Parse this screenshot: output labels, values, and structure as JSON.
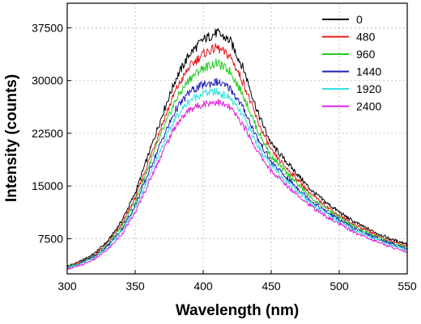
{
  "chart_data": {
    "type": "line",
    "title": "",
    "xlabel": "Wavelength (nm)",
    "ylabel": "Intensity (counts)",
    "xlim": [
      300,
      550
    ],
    "ylim": [
      2500,
      41000
    ],
    "xticks": [
      300,
      350,
      400,
      450,
      500,
      550
    ],
    "yticks": [
      7500,
      15000,
      22500,
      30000,
      37500
    ],
    "grid": true,
    "legend_position": "top-right",
    "x": [
      300,
      310,
      320,
      330,
      340,
      350,
      360,
      370,
      380,
      390,
      400,
      410,
      420,
      430,
      440,
      450,
      460,
      470,
      480,
      490,
      500,
      510,
      520,
      530,
      540,
      550
    ],
    "series": [
      {
        "name": "0",
        "color": "#000000",
        "values": [
          3600,
          4300,
          5400,
          7200,
          10000,
          14000,
          19600,
          25200,
          30300,
          33800,
          35800,
          36800,
          35600,
          31500,
          25500,
          21000,
          18700,
          16500,
          14300,
          12700,
          11300,
          10000,
          9000,
          8100,
          7300,
          6800
        ]
      },
      {
        "name": "480",
        "color": "#e31a1c",
        "values": [
          3500,
          4200,
          5200,
          6900,
          9500,
          13300,
          18600,
          23900,
          28700,
          32000,
          33800,
          34700,
          33400,
          29500,
          24200,
          20000,
          17800,
          15800,
          13700,
          12200,
          10800,
          9600,
          8700,
          7800,
          7000,
          6500
        ]
      },
      {
        "name": "960",
        "color": "#22cc22",
        "values": [
          3500,
          4100,
          5100,
          6700,
          9200,
          12800,
          17800,
          22800,
          27300,
          30300,
          31800,
          32500,
          31300,
          27700,
          22900,
          19200,
          17100,
          15200,
          13200,
          11800,
          10500,
          9300,
          8400,
          7600,
          6800,
          6300
        ]
      },
      {
        "name": "1440",
        "color": "#1f1fb4",
        "values": [
          3400,
          4000,
          5000,
          6500,
          8800,
          12200,
          17000,
          21700,
          25900,
          28400,
          29400,
          29800,
          28900,
          25900,
          21700,
          18400,
          16400,
          14600,
          12800,
          11400,
          10200,
          9000,
          8200,
          7400,
          6700,
          6100
        ]
      },
      {
        "name": "1920",
        "color": "#33e0e0",
        "values": [
          3300,
          3900,
          4800,
          6300,
          8500,
          11800,
          16300,
          20800,
          24800,
          27200,
          28200,
          28400,
          27500,
          24700,
          20800,
          17800,
          15900,
          14200,
          12400,
          11100,
          9900,
          8800,
          8000,
          7200,
          6500,
          5900
        ]
      },
      {
        "name": "2400",
        "color": "#e020e0",
        "values": [
          3200,
          3700,
          4600,
          6000,
          8100,
          11200,
          15500,
          19800,
          23700,
          25900,
          26700,
          27000,
          26100,
          23500,
          19900,
          17100,
          15300,
          13700,
          12000,
          10700,
          9600,
          8500,
          7700,
          6900,
          6200,
          5600
        ]
      }
    ]
  }
}
